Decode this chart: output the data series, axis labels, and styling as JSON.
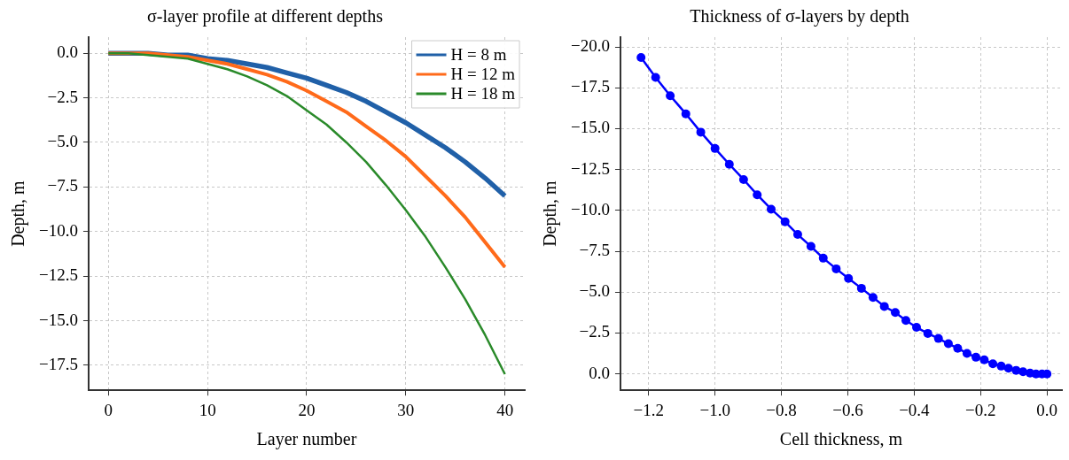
{
  "chart_data": [
    {
      "type": "line",
      "title": "σ-layer profile at different depths",
      "xlabel": "Layer number",
      "ylabel": "Depth, m",
      "x": [
        0,
        2,
        4,
        6,
        8,
        10,
        12,
        14,
        16,
        18,
        20,
        22,
        24,
        26,
        28,
        30,
        32,
        34,
        36,
        38,
        40
      ],
      "series": [
        {
          "name": "H = 8 m",
          "color": "#2060a8",
          "values": [
            0,
            0,
            0,
            -0.1,
            -0.1,
            -0.3,
            -0.4,
            -0.6,
            -0.8,
            -1.1,
            -1.4,
            -1.8,
            -2.2,
            -2.7,
            -3.3,
            -3.9,
            -4.6,
            -5.3,
            -6.1,
            -7.0,
            -8
          ]
        },
        {
          "name": "H = 12 m",
          "color": "#ff6a1a",
          "values": [
            0,
            0,
            0,
            -0.1,
            -0.2,
            -0.4,
            -0.6,
            -0.9,
            -1.2,
            -1.6,
            -2.1,
            -2.7,
            -3.3,
            -4.1,
            -4.9,
            -5.8,
            -6.9,
            -8.0,
            -9.2,
            -10.6,
            -12
          ]
        },
        {
          "name": "H = 18 m",
          "color": "#2a8a2a",
          "values": [
            0,
            0,
            -0.1,
            -0.2,
            -0.3,
            -0.6,
            -0.9,
            -1.3,
            -1.8,
            -2.4,
            -3.2,
            -4.0,
            -5.0,
            -6.1,
            -7.4,
            -8.8,
            -10.3,
            -12.0,
            -13.8,
            -15.8,
            -18
          ]
        }
      ],
      "xlim": [
        -2,
        42
      ],
      "xticks": [
        0,
        10,
        20,
        30,
        40
      ],
      "ylim": [
        -18.9,
        0.9
      ],
      "yticks": [
        {
          "value": 0,
          "label": "0.0"
        },
        {
          "value": -2.5,
          "label": "−2.5"
        },
        {
          "value": -5,
          "label": "−5.0"
        },
        {
          "value": -7.5,
          "label": "−7.5"
        },
        {
          "value": -10,
          "label": "−10.0"
        },
        {
          "value": -12.5,
          "label": "−12.5"
        },
        {
          "value": -15,
          "label": "−15.0"
        },
        {
          "value": -17.5,
          "label": "−17.5"
        }
      ],
      "grid": true,
      "legend": "top right",
      "marker": "none",
      "line_style": "solid"
    },
    {
      "type": "line",
      "title": "Thickness of σ-layers by depth",
      "xlabel": "Cell thickness, m",
      "ylabel": "Depth, m",
      "x": [
        -1.223,
        -1.179,
        -1.135,
        -1.088,
        -1.043,
        -1.0,
        -0.957,
        -0.914,
        -0.873,
        -0.831,
        -0.789,
        -0.751,
        -0.711,
        -0.674,
        -0.635,
        -0.598,
        -0.559,
        -0.524,
        -0.49,
        -0.457,
        -0.425,
        -0.393,
        -0.359,
        -0.327,
        -0.297,
        -0.269,
        -0.241,
        -0.214,
        -0.189,
        -0.163,
        -0.138,
        -0.116,
        -0.093,
        -0.072,
        -0.051,
        -0.033,
        -0.015,
        0
      ],
      "series": [
        {
          "color": "#0000ff",
          "values": [
            -19.36,
            -18.14,
            -17.02,
            -15.91,
            -14.79,
            -13.79,
            -12.82,
            -11.89,
            -10.96,
            -10.08,
            -9.31,
            -8.53,
            -7.8,
            -7.08,
            -6.43,
            -5.84,
            -5.24,
            -4.68,
            -4.13,
            -3.76,
            -3.27,
            -2.85,
            -2.48,
            -2.17,
            -1.85,
            -1.57,
            -1.26,
            -1.02,
            -0.86,
            -0.62,
            -0.48,
            -0.35,
            -0.22,
            -0.13,
            -0.05,
            0,
            0,
            0
          ]
        }
      ],
      "xlim": [
        -1.285,
        0.045
      ],
      "xticks": [
        {
          "value": -1.2,
          "label": "−1.2"
        },
        {
          "value": -1,
          "label": "−1.0"
        },
        {
          "value": -0.8,
          "label": "−0.8"
        },
        {
          "value": -0.6,
          "label": "−0.6"
        },
        {
          "value": -0.4,
          "label": "−0.4"
        },
        {
          "value": -0.2,
          "label": "−0.2"
        },
        {
          "value": 0,
          "label": "0.0"
        }
      ],
      "ylim": [
        1.0,
        -20.6
      ],
      "yticks": [
        {
          "value": -20,
          "label": "−20.0"
        },
        {
          "value": -17.5,
          "label": "−17.5"
        },
        {
          "value": -15,
          "label": "−15.0"
        },
        {
          "value": -12.5,
          "label": "−12.5"
        },
        {
          "value": -10,
          "label": "−10.0"
        },
        {
          "value": -7.5,
          "label": "−7.5"
        },
        {
          "value": -5,
          "label": "−5.0"
        },
        {
          "value": -2.5,
          "label": "−2.5"
        },
        {
          "value": 0,
          "label": "0.0"
        }
      ],
      "grid": true,
      "marker": "circle",
      "line_style": "solid"
    }
  ]
}
